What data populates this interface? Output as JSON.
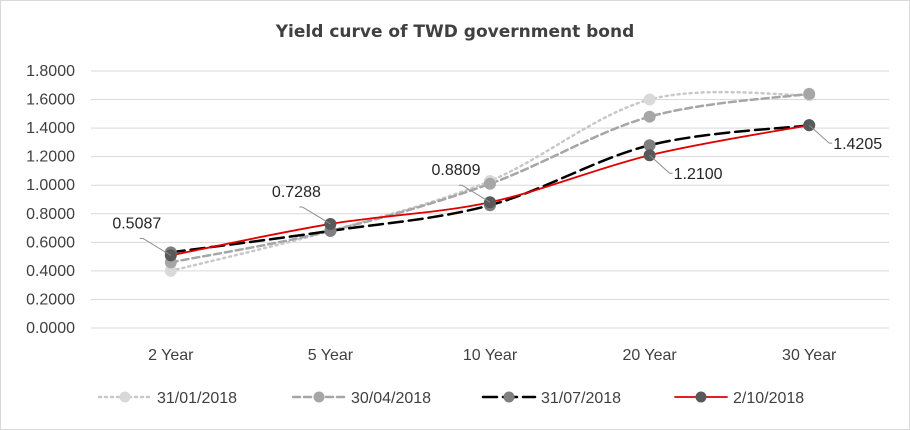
{
  "chart_data": {
    "type": "line",
    "title": "Yield curve of TWD government bond",
    "xlabel": "",
    "ylabel": "",
    "categories": [
      "2 Year",
      "5 Year",
      "10 Year",
      "20 Year",
      "30 Year"
    ],
    "ylim": [
      0,
      1.8
    ],
    "yticks": [
      "0.0000",
      "0.2000",
      "0.4000",
      "0.6000",
      "0.8000",
      "1.0000",
      "1.2000",
      "1.4000",
      "1.6000",
      "1.8000"
    ],
    "grid": true,
    "legend_position": "bottom",
    "series": [
      {
        "name": "31/01/2018",
        "values": [
          0.4,
          0.68,
          1.03,
          1.6,
          1.63
        ],
        "color": "#c8c8c8",
        "marker": "#d9d9d9",
        "dash": "dotted"
      },
      {
        "name": "30/04/2018",
        "values": [
          0.46,
          0.68,
          1.01,
          1.48,
          1.64
        ],
        "color": "#a6a6a6",
        "marker": "#a6a6a6",
        "dash": "dashed"
      },
      {
        "name": "31/07/2018",
        "values": [
          0.53,
          0.68,
          0.86,
          1.28,
          1.42
        ],
        "color": "#000000",
        "marker": "#7f7f7f",
        "dash": "longdash"
      },
      {
        "name": "2/10/2018",
        "values": [
          0.5087,
          0.7288,
          0.8809,
          1.21,
          1.4205
        ],
        "color": "#e00000",
        "marker": "#595959",
        "dash": "solid"
      }
    ],
    "data_labels": [
      {
        "series": "2/10/2018",
        "category": "2 Year",
        "text": "0.5087",
        "side": "upper-left"
      },
      {
        "series": "2/10/2018",
        "category": "5 Year",
        "text": "0.7288",
        "side": "upper-left"
      },
      {
        "series": "2/10/2018",
        "category": "10 Year",
        "text": "0.8809",
        "side": "upper-left"
      },
      {
        "series": "2/10/2018",
        "category": "20 Year",
        "text": "1.2100",
        "side": "lower-right"
      },
      {
        "series": "2/10/2018",
        "category": "30 Year",
        "text": "1.4205",
        "side": "lower-right"
      }
    ]
  }
}
